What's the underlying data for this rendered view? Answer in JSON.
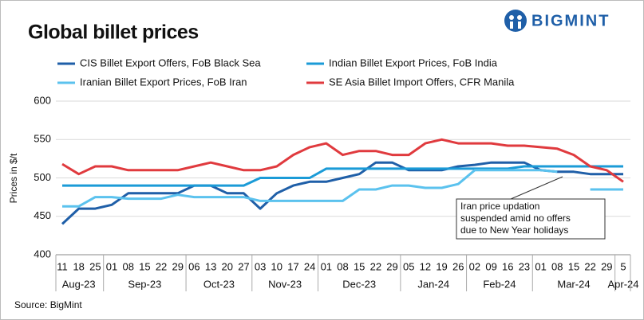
{
  "brand": "BIGMINT",
  "chart_data": {
    "type": "line",
    "title": "Global billet prices",
    "y_label": "Prices in $/t",
    "source": "Source: BigMint",
    "annotation": "Iran price updation suspended  amid no offers due to New Year holidays",
    "groups": [
      {
        "label": "Aug-23",
        "categories": [
          "11",
          "18",
          "25"
        ]
      },
      {
        "label": "Sep-23",
        "categories": [
          "01",
          "08",
          "15",
          "22",
          "29"
        ]
      },
      {
        "label": "Oct-23",
        "categories": [
          "06",
          "13",
          "20",
          "27"
        ]
      },
      {
        "label": "Nov-23",
        "categories": [
          "03",
          "10",
          "17",
          "24"
        ]
      },
      {
        "label": "Dec-23",
        "categories": [
          "01",
          "08",
          "15",
          "22",
          "29"
        ]
      },
      {
        "label": "Jan-24",
        "categories": [
          "05",
          "12",
          "19",
          "26"
        ]
      },
      {
        "label": "Feb-24",
        "categories": [
          "02",
          "09",
          "16",
          "23"
        ]
      },
      {
        "label": "Mar-24",
        "categories": [
          "01",
          "08",
          "15",
          "22",
          "29"
        ]
      },
      {
        "label": "Apr-24",
        "categories": [
          "5"
        ]
      }
    ],
    "ylim": [
      400,
      600
    ],
    "yticks": [
      400,
      450,
      500,
      550,
      600
    ],
    "grid": true,
    "series": [
      {
        "name": "CIS Billet Export Offers, FoB Black Sea",
        "color": "#1f5fa8",
        "values": [
          440,
          460,
          460,
          465,
          480,
          480,
          480,
          480,
          490,
          490,
          480,
          480,
          460,
          480,
          490,
          495,
          495,
          500,
          505,
          520,
          520,
          510,
          510,
          510,
          515,
          517,
          520,
          520,
          520,
          510,
          508,
          508,
          505,
          505,
          505
        ]
      },
      {
        "name": "Indian Billet Export Prices, FoB India",
        "color": "#1b9bd7",
        "values": [
          490,
          490,
          490,
          490,
          490,
          490,
          490,
          490,
          490,
          490,
          490,
          490,
          500,
          500,
          500,
          500,
          512,
          512,
          512,
          512,
          512,
          512,
          512,
          512,
          512,
          512,
          512,
          512,
          515,
          515,
          515,
          515,
          515,
          515,
          515
        ]
      },
      {
        "name": "Iranian Billet Export Prices, FoB Iran",
        "color": "#5bc2ee",
        "values": [
          463,
          463,
          475,
          475,
          473,
          473,
          473,
          478,
          475,
          475,
          475,
          475,
          470,
          470,
          470,
          470,
          470,
          470,
          485,
          485,
          490,
          490,
          487,
          487,
          492,
          510,
          510,
          510,
          510,
          510,
          508,
          null,
          485,
          485,
          485
        ]
      },
      {
        "name": "SE Asia Billet Import Offers, CFR Manila",
        "color": "#e03a3e",
        "values": [
          518,
          505,
          515,
          515,
          510,
          510,
          510,
          510,
          515,
          520,
          515,
          510,
          510,
          515,
          530,
          540,
          545,
          530,
          535,
          535,
          530,
          530,
          545,
          550,
          545,
          545,
          545,
          542,
          542,
          540,
          538,
          530,
          515,
          510,
          495
        ]
      }
    ]
  }
}
